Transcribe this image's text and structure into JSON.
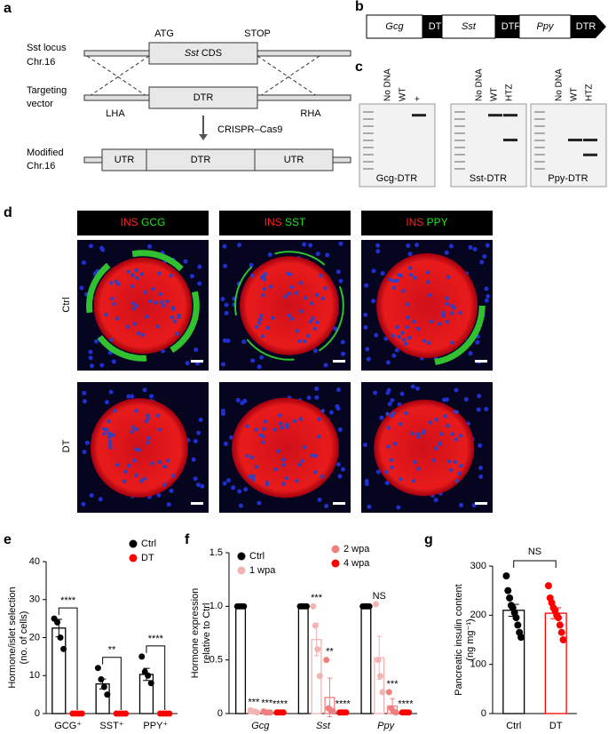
{
  "panel_labels": [
    "a",
    "b",
    "c",
    "d",
    "e",
    "f",
    "g"
  ],
  "a": {
    "locus": "Sst locus",
    "locus_chr": "Chr.16",
    "atg": "ATG",
    "stop": "STOP",
    "cds_gene": "Sst",
    "cds": "CDS",
    "targeting": "Targeting",
    "vector": "vector",
    "dtr": "DTR",
    "lha": "LHA",
    "rha": "RHA",
    "crispr": "CRISPR–Cas9",
    "modified": "Modified",
    "modified_chr": "Chr.16",
    "utr_left": "UTR",
    "dtr_mod": "DTR",
    "utr_right": "UTR"
  },
  "b": {
    "constructs": [
      {
        "gene": "Gcg",
        "tag": "DTR"
      },
      {
        "gene": "Sst",
        "tag": "DTR"
      },
      {
        "gene": "Ppy",
        "tag": "DTR"
      }
    ]
  },
  "c": {
    "gels": [
      {
        "lanes": [
          "No DNA",
          "WT",
          "+"
        ],
        "name": "Gcg-DTR"
      },
      {
        "lanes": [
          "No DNA",
          "WT",
          "HTZ"
        ],
        "name": "Sst-DTR"
      },
      {
        "lanes": [
          "No DNA",
          "WT",
          "HTZ"
        ],
        "name": "Ppy-DTR"
      }
    ]
  },
  "d": {
    "headers": [
      {
        "stain1": "INS",
        "stain2": "GCG"
      },
      {
        "stain1": "INS",
        "stain2": "SST"
      },
      {
        "stain1": "INS",
        "stain2": "PPY"
      }
    ],
    "rows": [
      "Ctrl",
      "DT"
    ]
  },
  "chart_data": [
    {
      "type": "bar",
      "ylabel": [
        "Hormone/islet selection",
        "(no. of cells)"
      ],
      "categories": [
        "GCG⁺",
        "SST⁺",
        "PPY⁺"
      ],
      "series": [
        {
          "name": "Ctrl",
          "color": "#000000",
          "values": [
            22.5,
            7.8,
            10.3
          ],
          "err": [
            2.3,
            1.3,
            1.6
          ],
          "points": [
            [
              25,
              24,
              20,
              17
            ],
            [
              12,
              9,
              7,
              5
            ],
            [
              15,
              11,
              10,
              8
            ]
          ]
        },
        {
          "name": "DT",
          "color": "#ff0000",
          "values": [
            0,
            0,
            0
          ],
          "points": [
            [
              0,
              0,
              0,
              0
            ],
            [
              0,
              0,
              0,
              0
            ],
            [
              0,
              0,
              0,
              0
            ]
          ]
        }
      ],
      "annotations": [
        "****",
        "**",
        "****"
      ],
      "ylim": [
        0,
        40
      ],
      "yticks": [
        0,
        10,
        20,
        30,
        40
      ]
    },
    {
      "type": "bar",
      "ylabel": [
        "Hormone expression",
        "relative to Ctrl"
      ],
      "categories": [
        "Gcg",
        "Sst",
        "Ppy"
      ],
      "series": [
        {
          "name": "Ctrl",
          "color": "#000000",
          "values": [
            1,
            1,
            1
          ],
          "points": [
            [
              1,
              1,
              1,
              1
            ],
            [
              1,
              1,
              1,
              1
            ],
            [
              1,
              1,
              1,
              1
            ]
          ]
        },
        {
          "name": "1 wpa",
          "color": "#f4b3b3",
          "values": [
            0.02,
            0.69,
            0.52
          ],
          "err": [
            0.01,
            0.15,
            0.2
          ],
          "points": [
            [
              0.03,
              0.02,
              0.02,
              0.01
            ],
            [
              1.0,
              0.82,
              0.6,
              0.35
            ],
            [
              1.02,
              0.5,
              0.35,
              0.2
            ]
          ],
          "annotations": [
            "***",
            "***",
            "NS"
          ]
        },
        {
          "name": "2 wpa",
          "color": "#f07f7f",
          "values": [
            0.01,
            0.15,
            0.07
          ],
          "err": [
            0.005,
            0.18,
            0.07
          ],
          "points": [
            [
              0.02,
              0.01,
              0.01,
              0.01
            ],
            [
              0.5,
              0.05,
              0.03,
              0.02
            ],
            [
              0.2,
              0.05,
              0.02,
              0.01
            ]
          ],
          "annotations": [
            "***",
            "**",
            "***"
          ]
        },
        {
          "name": "4 wpa",
          "color": "#ff0000",
          "values": [
            0.01,
            0.01,
            0.01
          ],
          "points": [
            [
              0.01,
              0.01,
              0.01,
              0.01
            ],
            [
              0.01,
              0.01,
              0.01,
              0.01
            ],
            [
              0.01,
              0.01,
              0.01,
              0.01
            ]
          ],
          "annotations": [
            "****",
            "****",
            "****"
          ]
        }
      ],
      "ylim": [
        0,
        1.5
      ],
      "yticks": [
        0,
        0.5,
        {
          "value": 1,
          "label": "1.0"
        },
        1.5
      ]
    },
    {
      "type": "bar",
      "ylabel": [
        "Pancreatic insulin content",
        "(ng mg⁻¹)"
      ],
      "categories": [
        "Ctrl",
        "DT"
      ],
      "colors": [
        "#000000",
        "#ff0000"
      ],
      "values": [
        210,
        204
      ],
      "err": [
        12,
        11
      ],
      "points": [
        [
          280,
          250,
          235,
          220,
          215,
          205,
          195,
          180,
          165,
          155
        ],
        [
          260,
          235,
          225,
          215,
          210,
          200,
          195,
          180,
          165,
          150
        ]
      ],
      "annotation": "NS",
      "ylim": [
        0,
        300
      ],
      "yticks": [
        0,
        100,
        200,
        300
      ]
    }
  ]
}
